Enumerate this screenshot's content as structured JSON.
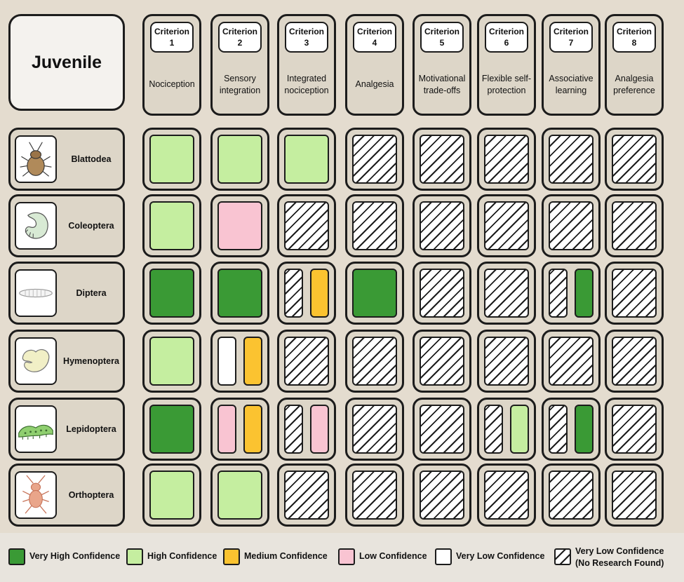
{
  "title": "Juvenile",
  "criteria": [
    {
      "label": "Criterion",
      "number": "1",
      "name": "Nociception"
    },
    {
      "label": "Criterion",
      "number": "2",
      "name": "Sensory integration"
    },
    {
      "label": "Criterion",
      "number": "3",
      "name": "Integrated nociception"
    },
    {
      "label": "Criterion",
      "number": "4",
      "name": "Analgesia"
    },
    {
      "label": "Criterion",
      "number": "5",
      "name": "Motivational trade-offs"
    },
    {
      "label": "Criterion",
      "number": "6",
      "name": "Flexible self-protection"
    },
    {
      "label": "Criterion",
      "number": "7",
      "name": "Associative learning"
    },
    {
      "label": "Criterion",
      "number": "8",
      "name": "Analgesia preference"
    }
  ],
  "orders": [
    {
      "name": "Blattodea",
      "icon": "cockroach-icon",
      "cells": [
        [
          "high"
        ],
        [
          "high"
        ],
        [
          "high"
        ],
        [
          "none"
        ],
        [
          "none"
        ],
        [
          "none"
        ],
        [
          "none"
        ],
        [
          "none"
        ]
      ]
    },
    {
      "name": "Coleoptera",
      "icon": "beetle-grub-icon",
      "cells": [
        [
          "high"
        ],
        [
          "low"
        ],
        [
          "none"
        ],
        [
          "none"
        ],
        [
          "none"
        ],
        [
          "none"
        ],
        [
          "none"
        ],
        [
          "none"
        ]
      ]
    },
    {
      "name": "Diptera",
      "icon": "maggot-icon",
      "cells": [
        [
          "very_high"
        ],
        [
          "very_high"
        ],
        [
          "none",
          "medium"
        ],
        [
          "very_high"
        ],
        [
          "none"
        ],
        [
          "none"
        ],
        [
          "none",
          "very_high"
        ],
        [
          "none"
        ]
      ]
    },
    {
      "name": "Hymenoptera",
      "icon": "bee-larva-icon",
      "cells": [
        [
          "high"
        ],
        [
          "very_low",
          "medium"
        ],
        [
          "none"
        ],
        [
          "none"
        ],
        [
          "none"
        ],
        [
          "none"
        ],
        [
          "none"
        ],
        [
          "none"
        ]
      ]
    },
    {
      "name": "Lepidoptera",
      "icon": "caterpillar-icon",
      "cells": [
        [
          "very_high"
        ],
        [
          "low",
          "medium"
        ],
        [
          "none",
          "low"
        ],
        [
          "none"
        ],
        [
          "none"
        ],
        [
          "none",
          "high"
        ],
        [
          "none",
          "very_high"
        ],
        [
          "none"
        ]
      ]
    },
    {
      "name": "Orthoptera",
      "icon": "cricket-nymph-icon",
      "cells": [
        [
          "high"
        ],
        [
          "high"
        ],
        [
          "none"
        ],
        [
          "none"
        ],
        [
          "none"
        ],
        [
          "none"
        ],
        [
          "none"
        ],
        [
          "none"
        ]
      ]
    }
  ],
  "colors": {
    "very_high": "#3a9a35",
    "high": "#c5eea0",
    "medium": "#fbc330",
    "low": "#f9c4d2",
    "very_low": "#ffffff"
  },
  "legend": [
    {
      "key": "very_high",
      "label": "Very High Confidence"
    },
    {
      "key": "high",
      "label": "High Confidence"
    },
    {
      "key": "medium",
      "label": "Medium Confidence"
    },
    {
      "key": "low",
      "label": "Low Confidence"
    },
    {
      "key": "very_low",
      "label": "Very Low Confidence"
    },
    {
      "key": "none",
      "label": "Very Low Confidence",
      "sublabel": "(No Research Found)"
    }
  ]
}
